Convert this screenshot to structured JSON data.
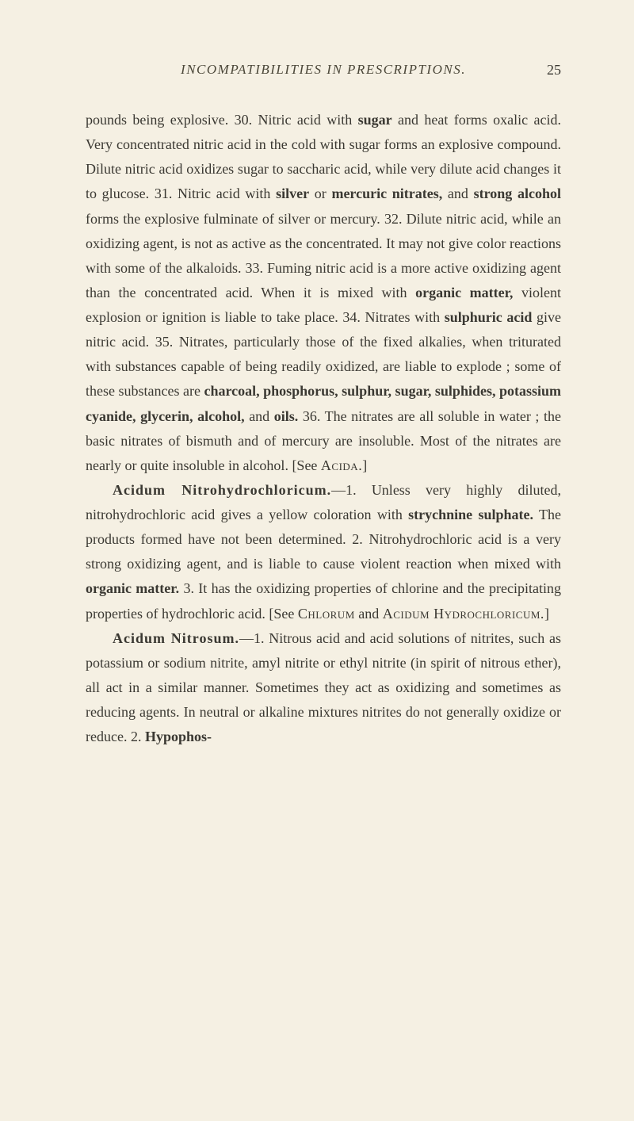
{
  "header": {
    "title": "INCOMPATIBILITIES IN PRESCRIPTIONS.",
    "page_number": "25"
  },
  "colors": {
    "background": "#f5f0e3",
    "text": "#3a3832",
    "header_text": "#4a4638"
  },
  "typography": {
    "body_fontsize": 18,
    "header_fontsize": 17,
    "line_height": 1.73,
    "font_family": "Georgia, Times New Roman, serif"
  },
  "paragraphs": {
    "p1": {
      "t1": "pounds being explosive. 30. Nitric acid with ",
      "b1": "sugar",
      "t2": " and heat forms oxalic acid. Very concentrated nitric acid in the cold with sugar forms an explosive compound. Dilute nitric acid oxidizes sugar to saccharic acid, while very dilute acid changes it to glucose. 31. Nitric acid with ",
      "b2": "silver",
      "t3": " or ",
      "b3": "mercuric nitrates,",
      "t4": " and ",
      "b4": "strong alcohol",
      "t5": " forms the explosive fulminate of silver or mercury. 32. Dilute nitric acid, while an oxidizing agent, is not as active as the concentrated. It may not give color reactions with some of the alkaloids. 33. Fuming nitric acid is a more active oxidizing agent than the concentrated acid. When it is mixed with ",
      "b5": "organic matter,",
      "t6": " violent explosion or ignition is liable to take place. 34. Nitrates with ",
      "b6": "sulphuric acid",
      "t7": " give nitric acid. 35. Nitrates, particularly those of the fixed alkalies, when triturated with substances capable of being readily oxidized, are liable to explode ; some of these substances are ",
      "b7": "charcoal, phosphorus, sulphur, sugar, sulphides, potassium cyanide, glycerin, alcohol,",
      "t8": " and ",
      "b8": "oils.",
      "t9": " 36. The nitrates are all soluble in water ; the basic nitrates of bismuth and of mercury are insoluble. Most of the nitrates are nearly or quite insoluble in alcohol. [See ",
      "sc1": "Acida.",
      "t10": "]"
    },
    "p2": {
      "h1": "Acidum Nitrohydrochloricum.",
      "t1": "—1. Unless very highly diluted, nitrohydrochloric acid gives a yellow coloration with ",
      "b1": "strychnine sulphate.",
      "t2": " The products formed have not been determined. 2. Nitrohydrochloric acid is a very strong oxidizing agent, and is liable to cause violent reaction when mixed with ",
      "b2": "organic matter.",
      "t3": " 3. It has the oxidizing properties of chlorine and the precipitating properties of hydrochloric acid. [See ",
      "sc1": "Chlorum",
      "t4": " and ",
      "sc2": "Acidum Hydrochloricum.",
      "t5": "]"
    },
    "p3": {
      "h1": "Acidum Nitrosum.",
      "t1": "—1. Nitrous acid and acid solutions of nitrites, such as potassium or sodium nitrite, amyl nitrite or ethyl nitrite (in spirit of nitrous ether), all act in a similar manner. Sometimes they act as oxidizing and sometimes as reducing agents. In neutral or alkaline mixtures nitrites do not generally oxidize or reduce. 2. ",
      "b1": "Hypophos-"
    }
  }
}
